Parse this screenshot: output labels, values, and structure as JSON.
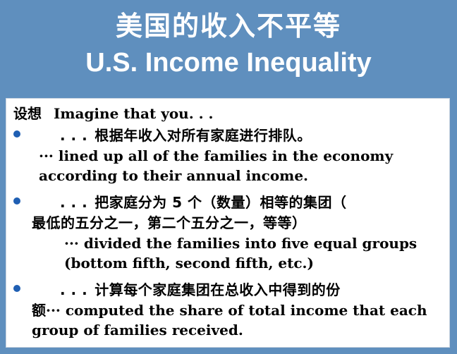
{
  "title": {
    "chinese": "美国的收入不平等",
    "english": "U.S. Income Inequality"
  },
  "content": {
    "intro_chinese": "设想",
    "intro_english": "Imagine that you. . .",
    "items": [
      {
        "chinese": "根据年收入对所有家庭进行排队。",
        "english": "lined up all of the families in the economy according to their annual income."
      },
      {
        "chinese_line1": "把家庭分为 5 个（数量）相等的集团（",
        "chinese_line2": "最低的五分之一，第二个五分之一，等等）",
        "english": "divided the families into five equal groups (bottom fifth, second fifth, etc.)"
      },
      {
        "chinese_line1": "计算每个家庭集团在总收入中得到的份",
        "chinese_line2": "额",
        "english": "computed the share of total income that each group of families received."
      }
    ],
    "ellipsis_dots": ". . .",
    "ellipsis_mid": "···"
  },
  "colors": {
    "background": "#5f8fbe",
    "bullet": "#1f5fb3",
    "content_background": "#ffffff"
  }
}
